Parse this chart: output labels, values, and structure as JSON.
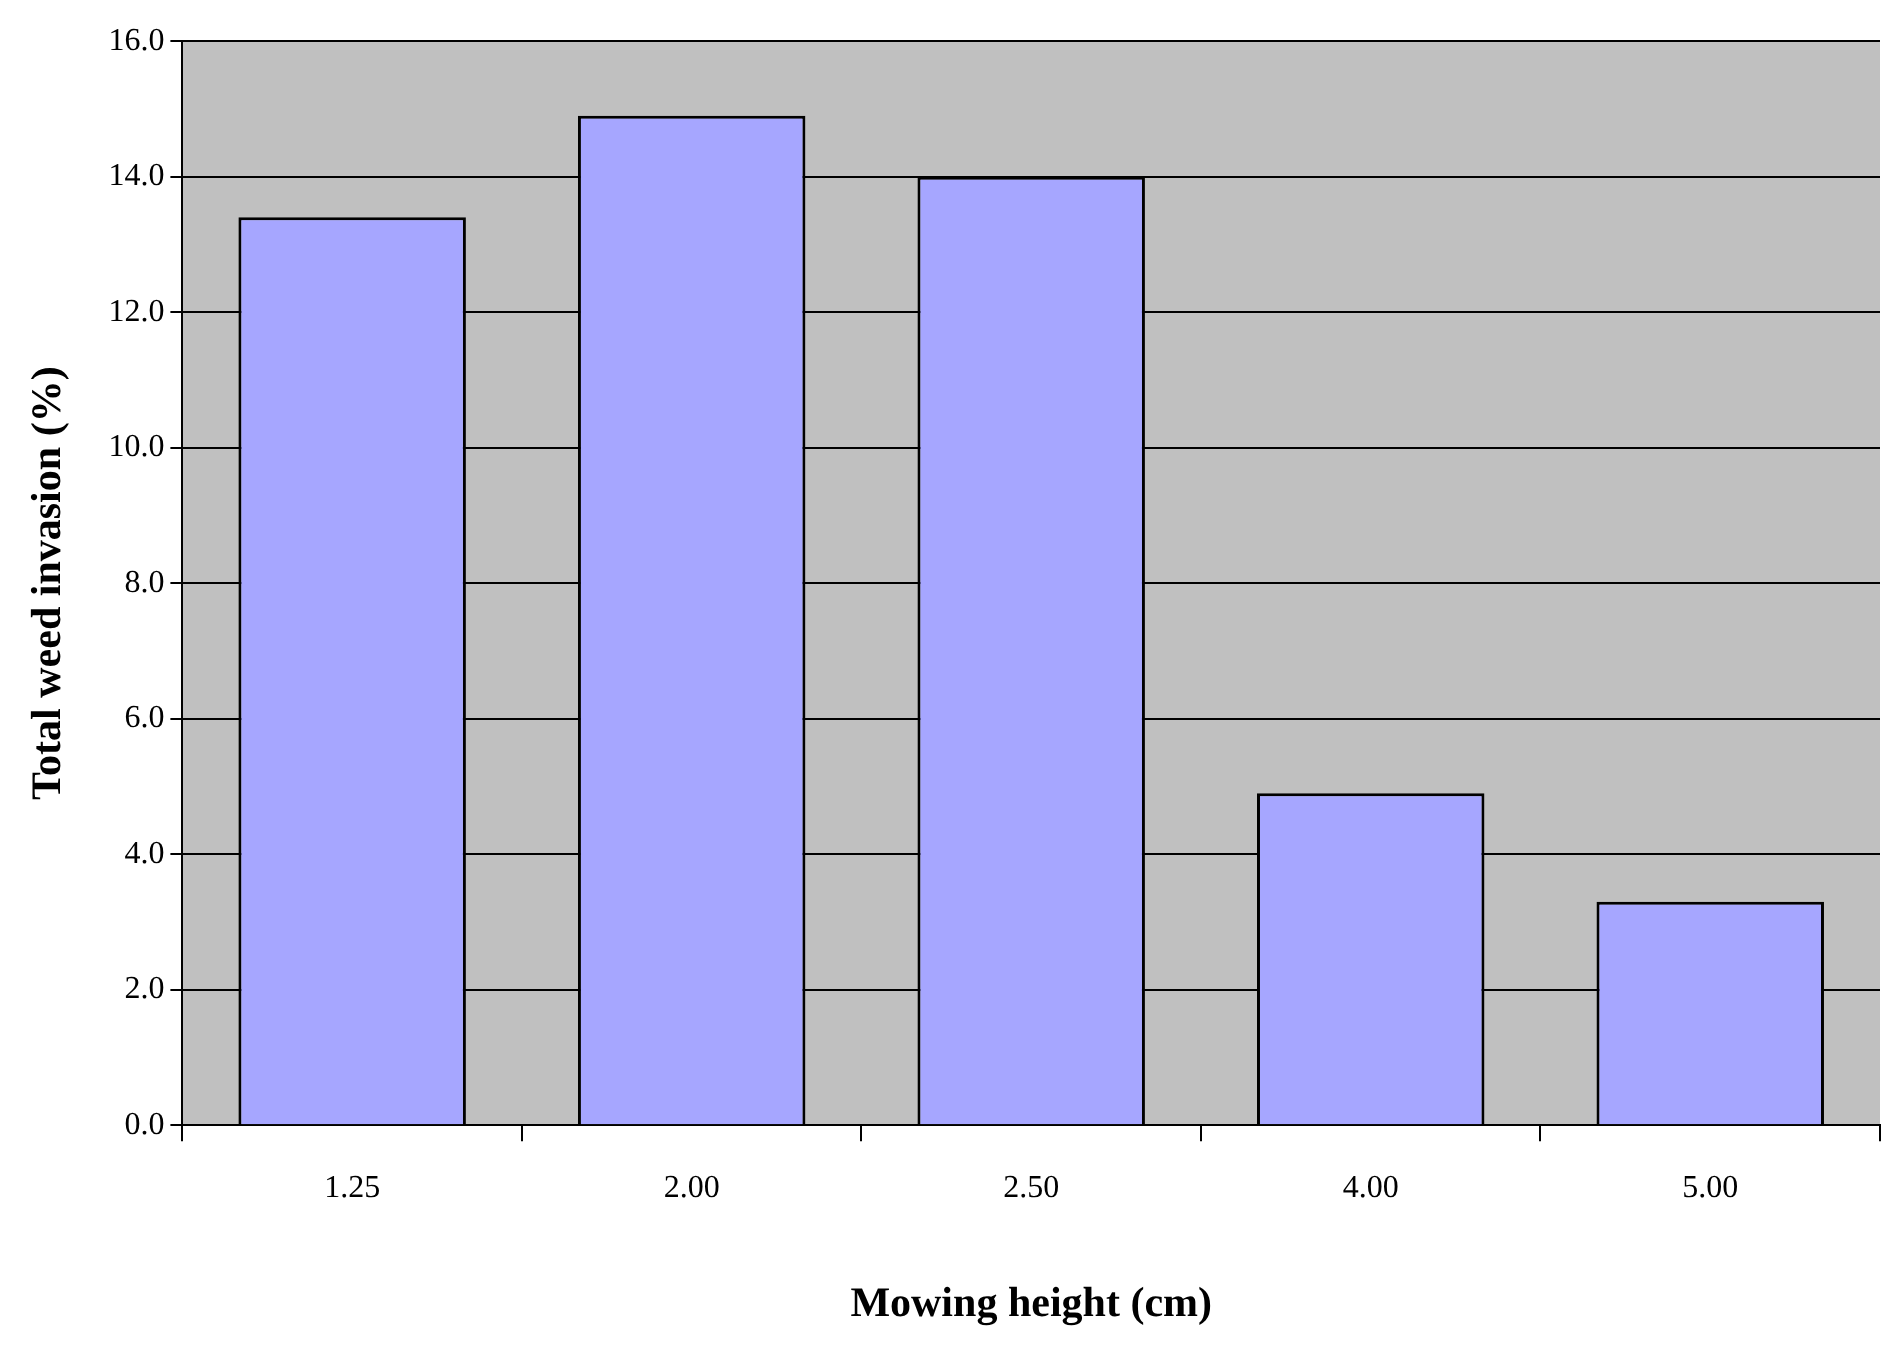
{
  "chart_data": {
    "type": "bar",
    "xlabel": "Mowing height (cm)",
    "ylabel": "Total weed invasion (%)",
    "categories": [
      "1.25",
      "2.00",
      "2.50",
      "4.00",
      "5.00"
    ],
    "values": [
      13.4,
      14.9,
      14.0,
      4.9,
      3.3
    ],
    "color": "#a6a6ff",
    "ylim": [
      0,
      16
    ],
    "yticks": [
      {
        "value": 0,
        "label": "0.0"
      },
      {
        "value": 2,
        "label": "2.0"
      },
      {
        "value": 4,
        "label": "4.0"
      },
      {
        "value": 6,
        "label": "6.0"
      },
      {
        "value": 8,
        "label": "8.0"
      },
      {
        "value": 10,
        "label": "10.0"
      },
      {
        "value": 12,
        "label": "12.0"
      },
      {
        "value": 14,
        "label": "14.0"
      },
      {
        "value": 16,
        "label": "16.0"
      }
    ],
    "grid": "y",
    "legend": false
  }
}
